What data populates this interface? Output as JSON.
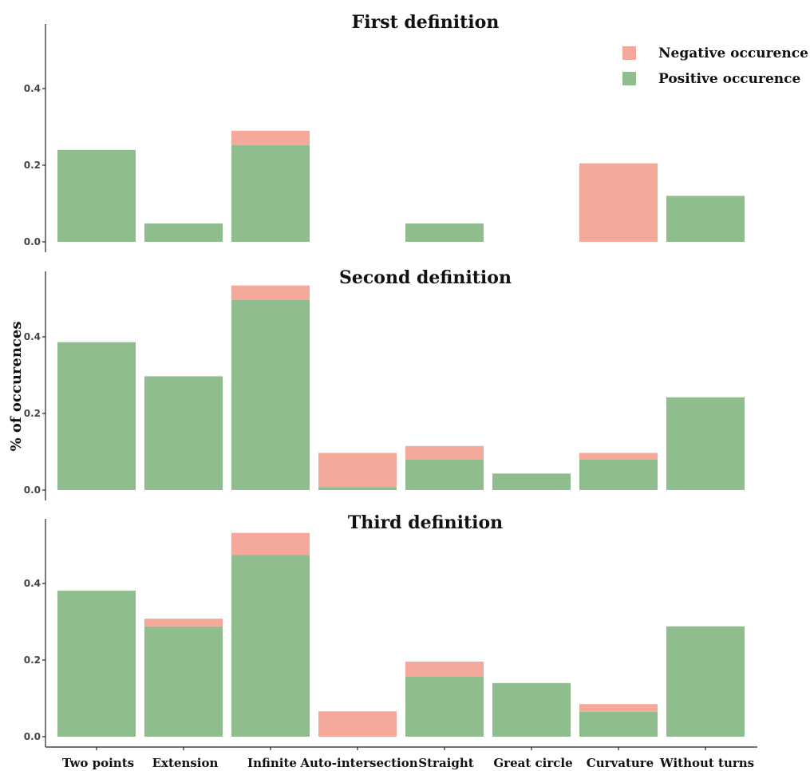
{
  "chart_data": {
    "type": "bar",
    "stacked": true,
    "ylabel": "% of occurences",
    "categories": [
      "Two points",
      "Extension",
      "Infinite",
      "Auto-intersection",
      "Straight",
      "Great circle",
      "Curvature",
      "Without turns"
    ],
    "legend": {
      "placement": "top-right",
      "entries": [
        {
          "key": "negative",
          "label": "Negative occurence",
          "color": "#F4A99A"
        },
        {
          "key": "positive",
          "label": "Positive occurence",
          "color": "#8FBD8E"
        }
      ]
    },
    "yticks": [
      0.0,
      0.2,
      0.4
    ],
    "ytick_labels": [
      "0.0",
      "0.2",
      "0.4"
    ],
    "panels": [
      {
        "title": "First definition",
        "ylim": [
          0,
          0.55
        ],
        "positive": [
          0.24,
          0.048,
          0.252,
          0.0,
          0.048,
          0.0,
          0.0,
          0.12
        ],
        "negative": [
          0.0,
          0.0,
          0.038,
          0.0,
          0.0,
          0.0,
          0.205,
          0.0
        ]
      },
      {
        "title": "Second definition",
        "ylim": [
          0,
          0.55
        ],
        "positive": [
          0.386,
          0.297,
          0.496,
          0.008,
          0.08,
          0.043,
          0.08,
          0.242
        ],
        "negative": [
          0.0,
          0.0,
          0.038,
          0.089,
          0.035,
          0.0,
          0.017,
          0.0
        ]
      },
      {
        "title": "Third definition",
        "ylim": [
          0,
          0.55
        ],
        "positive": [
          0.381,
          0.288,
          0.474,
          0.0,
          0.157,
          0.14,
          0.065,
          0.288
        ],
        "negative": [
          0.0,
          0.02,
          0.058,
          0.066,
          0.039,
          0.0,
          0.02,
          0.0
        ]
      }
    ]
  }
}
